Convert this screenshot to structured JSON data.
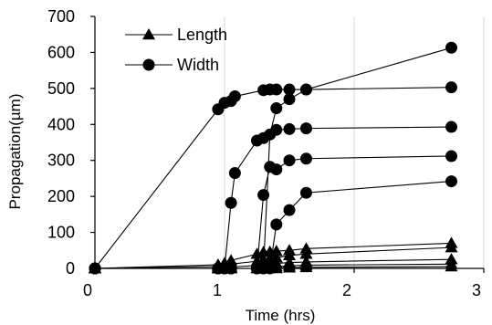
{
  "chart_data": {
    "type": "scatter",
    "xlabel": "Time (hrs)",
    "ylabel": "Propagation(µm)",
    "xlim": [
      0,
      3
    ],
    "ylim": [
      0,
      700
    ],
    "x_ticks": [
      "0",
      "1",
      "2",
      "3"
    ],
    "y_ticks": [
      "0",
      "100",
      "200",
      "300",
      "400",
      "500",
      "600",
      "700"
    ],
    "grid": "vertical",
    "legend_position": "top-left",
    "legend": [
      {
        "label": "Length",
        "marker": "triangle"
      },
      {
        "label": "Width",
        "marker": "circle"
      }
    ],
    "series": [
      {
        "group": "Width",
        "marker": "circle",
        "x": [
          0,
          0.95,
          1.0,
          1.05,
          1.08,
          1.3,
          1.35,
          1.4,
          1.5,
          1.63,
          2.75
        ],
        "y": [
          0,
          442,
          460,
          465,
          478,
          495,
          497,
          497,
          497,
          497,
          613
        ]
      },
      {
        "group": "Width",
        "marker": "circle",
        "x": [
          0,
          0.95,
          1.0,
          1.05,
          1.3,
          1.35,
          1.4,
          1.5,
          1.63,
          2.75
        ],
        "y": [
          0,
          0,
          0,
          0,
          0,
          372,
          445,
          470,
          497,
          503
        ]
      },
      {
        "group": "Width",
        "marker": "circle",
        "x": [
          0,
          0.95,
          1.0,
          1.05,
          1.08,
          1.25,
          1.3,
          1.4,
          1.5,
          1.63,
          2.75
        ],
        "y": [
          0,
          0,
          0,
          182,
          265,
          355,
          362,
          385,
          387,
          389,
          393
        ]
      },
      {
        "group": "Width",
        "marker": "circle",
        "x": [
          0,
          0.95,
          1.0,
          1.05,
          1.25,
          1.3,
          1.35,
          1.4,
          1.5,
          1.63,
          2.75
        ],
        "y": [
          0,
          0,
          0,
          0,
          0,
          204,
          282,
          275,
          300,
          305,
          312
        ]
      },
      {
        "group": "Width",
        "marker": "circle",
        "x": [
          0,
          0.95,
          1.0,
          1.05,
          1.25,
          1.3,
          1.35,
          1.4,
          1.5,
          1.63,
          2.75
        ],
        "y": [
          0,
          0,
          0,
          0,
          0,
          0,
          0,
          122,
          162,
          210,
          242
        ]
      },
      {
        "group": "Length",
        "marker": "triangle",
        "x": [
          0,
          0.95,
          1.0,
          1.05,
          1.25,
          1.3,
          1.35,
          1.4,
          1.5,
          1.63,
          2.75
        ],
        "y": [
          0,
          10,
          15,
          22,
          40,
          45,
          46,
          48,
          50,
          55,
          70
        ]
      },
      {
        "group": "Length",
        "marker": "triangle",
        "x": [
          0,
          0.95,
          1.0,
          1.05,
          1.25,
          1.3,
          1.35,
          1.4,
          1.5,
          1.63,
          2.75
        ],
        "y": [
          0,
          5,
          8,
          12,
          20,
          24,
          28,
          30,
          36,
          40,
          58
        ]
      },
      {
        "group": "Length",
        "marker": "triangle",
        "x": [
          0,
          0.95,
          1.0,
          1.05,
          1.25,
          1.3,
          1.35,
          1.4,
          1.5,
          1.63,
          2.75
        ],
        "y": [
          0,
          0,
          2,
          4,
          8,
          10,
          12,
          14,
          16,
          18,
          25
        ]
      },
      {
        "group": "Length",
        "marker": "triangle",
        "x": [
          0,
          0.95,
          1.0,
          1.05,
          1.25,
          1.3,
          1.35,
          1.4,
          1.5,
          1.63,
          2.75
        ],
        "y": [
          0,
          0,
          0,
          0,
          0,
          2,
          4,
          5,
          7,
          9,
          12
        ]
      },
      {
        "group": "Length",
        "marker": "triangle",
        "x": [
          0,
          0.95,
          1.0,
          1.05,
          1.25,
          1.3,
          1.35,
          1.4,
          1.5,
          1.63,
          2.75
        ],
        "y": [
          0,
          0,
          0,
          0,
          0,
          0,
          0,
          0,
          2,
          3,
          5
        ]
      }
    ]
  }
}
